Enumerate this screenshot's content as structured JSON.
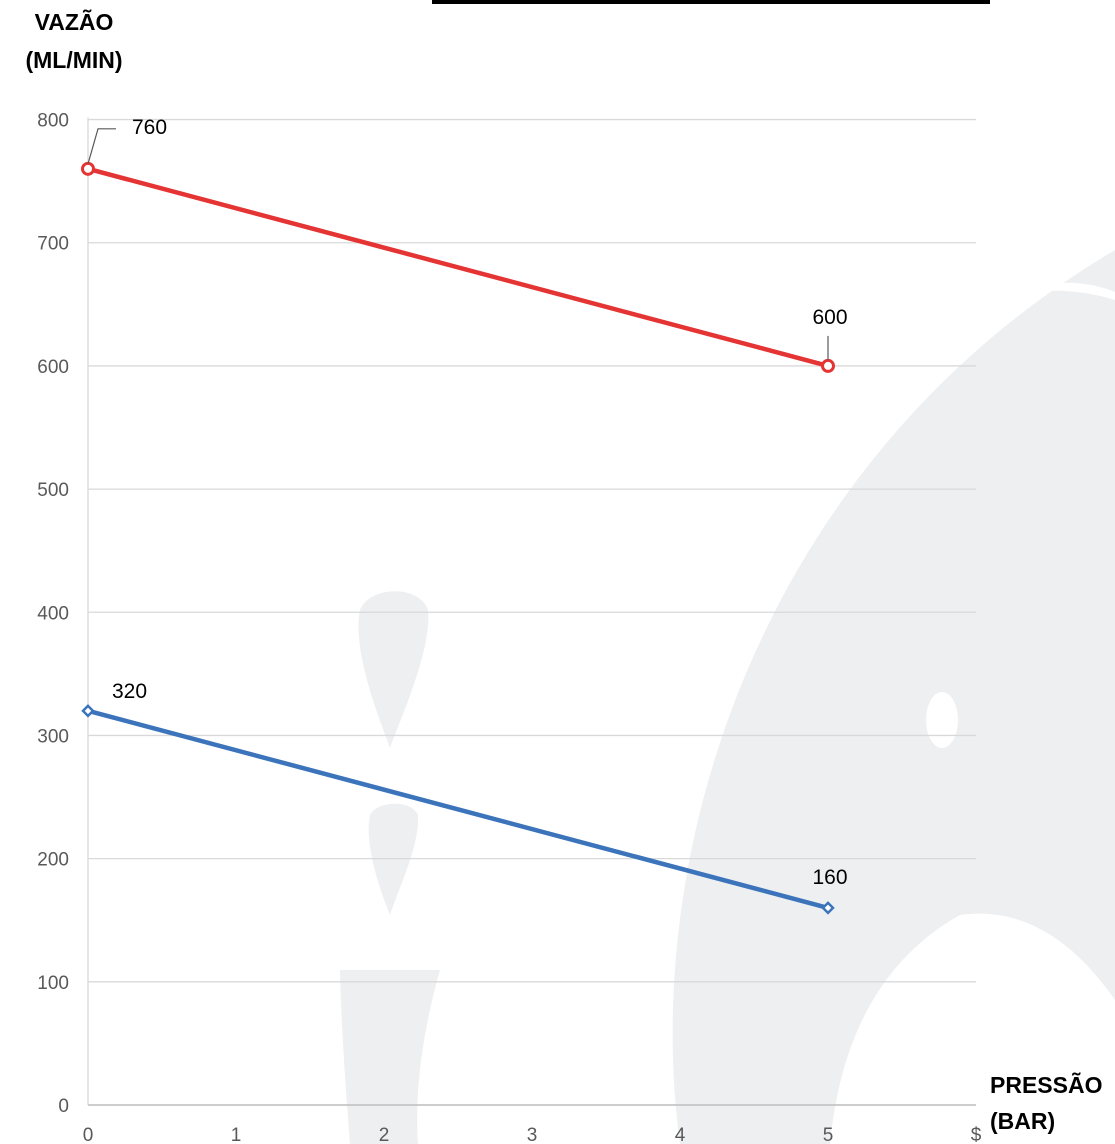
{
  "chart_data": {
    "type": "line",
    "ylabel": [
      "VAZÃO",
      "(ML/MIN)"
    ],
    "xlabel": [
      "PRESSÃO",
      "(BAR)"
    ],
    "xlim": [
      0,
      6
    ],
    "ylim": [
      0,
      800
    ],
    "x_ticks": [
      "0",
      "1",
      "2",
      "3",
      "4",
      "5",
      "$"
    ],
    "y_ticks": [
      "0",
      "100",
      "200",
      "300",
      "400",
      "500",
      "600",
      "700",
      "800"
    ],
    "grid": true,
    "series": [
      {
        "color": "#e53434",
        "marker": "circle",
        "x": [
          0,
          5
        ],
        "y": [
          760,
          600
        ],
        "labels": [
          "760",
          "600"
        ]
      },
      {
        "color": "#3c74bb",
        "marker": "diamond",
        "x": [
          0,
          5
        ],
        "y": [
          320,
          160
        ],
        "labels": [
          "320",
          "160"
        ]
      }
    ]
  },
  "watermark_color": "#eeeff1"
}
